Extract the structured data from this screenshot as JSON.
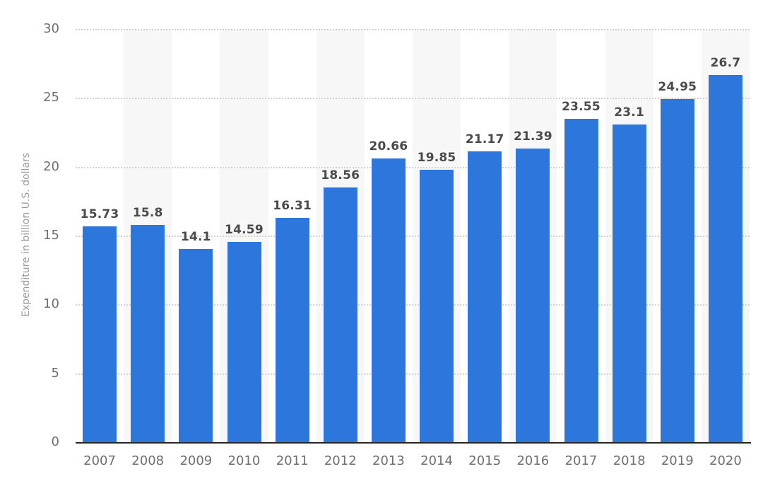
{
  "chart_data": {
    "type": "bar",
    "title": "",
    "categories": [
      "2007",
      "2008",
      "2009",
      "2010",
      "2011",
      "2012",
      "2013",
      "2014",
      "2015",
      "2016",
      "2017",
      "2018",
      "2019",
      "2020"
    ],
    "values": [
      15.73,
      15.8,
      14.1,
      14.59,
      16.31,
      18.56,
      20.66,
      19.85,
      21.17,
      21.39,
      23.55,
      23.1,
      24.95,
      26.7
    ],
    "value_labels": [
      "15.73",
      "15.8",
      "14.1",
      "14.59",
      "16.31",
      "18.56",
      "20.66",
      "19.85",
      "21.17",
      "21.39",
      "23.55",
      "23.1",
      "24.95",
      "26.7"
    ],
    "xlabel": "",
    "ylabel": "Expenditure in billion U.S. dollars",
    "ylim": [
      0,
      30
    ],
    "yticks": [
      0,
      5,
      10,
      15,
      20,
      25,
      30
    ],
    "grid": "horizontal-dotted",
    "legend": "none",
    "plot_bands": "alternating light bands on every second year column starting at 2008",
    "colors": {
      "bar": "#2d76dc",
      "value_label": "#4a4a4a",
      "tick_label": "#6f6f6f",
      "axis_title": "#9b9b9b",
      "gridline": "#d2d2d2",
      "plot_band": "#f7f7f7",
      "axis_line": "#262626",
      "background": "#ffffff"
    }
  }
}
